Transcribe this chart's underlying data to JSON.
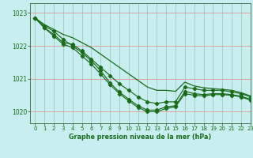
{
  "title": "Graphe pression niveau de la mer (hPa)",
  "background_color": "#c8eef0",
  "grid_color": "#99ccbb",
  "line_color": "#1a6b1a",
  "marker_color": "#1a6b1a",
  "xlim": [
    -0.5,
    23
  ],
  "ylim": [
    1019.65,
    1023.3
  ],
  "yticks": [
    1020,
    1021,
    1022,
    1023
  ],
  "xticks": [
    0,
    1,
    2,
    3,
    4,
    5,
    6,
    7,
    8,
    9,
    10,
    11,
    12,
    13,
    14,
    15,
    16,
    17,
    18,
    19,
    20,
    21,
    22,
    23
  ],
  "series1_x": [
    0,
    1,
    2,
    3,
    4,
    5,
    6,
    7,
    8,
    9,
    10,
    11,
    12,
    13,
    14,
    15,
    16,
    17,
    18,
    19,
    20,
    21,
    22,
    23
  ],
  "series1_y": [
    1022.85,
    1022.55,
    1022.35,
    1022.1,
    1022.05,
    1021.85,
    1021.6,
    1021.35,
    1021.1,
    1020.85,
    1020.65,
    1020.45,
    1020.3,
    1020.25,
    1020.3,
    1020.3,
    1020.75,
    1020.7,
    1020.65,
    1020.65,
    1020.65,
    1020.6,
    1020.55,
    1020.45
  ],
  "series2_x": [
    0,
    1,
    2,
    3,
    4,
    5,
    6,
    7,
    8,
    9,
    10,
    11,
    12,
    13,
    14,
    15,
    16,
    17,
    18,
    19,
    20,
    21,
    22,
    23
  ],
  "series2_y": [
    1022.85,
    1022.6,
    1022.45,
    1022.2,
    1022.0,
    1021.8,
    1021.55,
    1021.25,
    1020.88,
    1020.6,
    1020.38,
    1020.18,
    1020.05,
    1020.05,
    1020.15,
    1020.18,
    1020.62,
    1020.55,
    1020.52,
    1020.55,
    1020.55,
    1020.52,
    1020.47,
    1020.38
  ],
  "series3_x": [
    0,
    1,
    2,
    3,
    4,
    5,
    6,
    7,
    8,
    9,
    10,
    11,
    12,
    13,
    14,
    15,
    16,
    17,
    18,
    19,
    20,
    21,
    22,
    23
  ],
  "series3_y": [
    1022.85,
    1022.55,
    1022.3,
    1022.05,
    1021.95,
    1021.7,
    1021.45,
    1021.15,
    1020.82,
    1020.55,
    1020.33,
    1020.13,
    1020.0,
    1020.0,
    1020.1,
    1020.15,
    1020.55,
    1020.5,
    1020.48,
    1020.52,
    1020.52,
    1020.5,
    1020.45,
    1020.35
  ],
  "series_upper_x": [
    0,
    1,
    2,
    3,
    4,
    5,
    6,
    7,
    8,
    9,
    10,
    11,
    12,
    13,
    14,
    15,
    16,
    17,
    18,
    19,
    20,
    21,
    22,
    23
  ],
  "series_upper_y": [
    1022.85,
    1022.65,
    1022.5,
    1022.35,
    1022.25,
    1022.1,
    1021.95,
    1021.75,
    1021.55,
    1021.35,
    1021.15,
    1020.95,
    1020.75,
    1020.65,
    1020.65,
    1020.62,
    1020.9,
    1020.78,
    1020.73,
    1020.7,
    1020.68,
    1020.65,
    1020.58,
    1020.48
  ],
  "font_color": "#1a6b1a"
}
